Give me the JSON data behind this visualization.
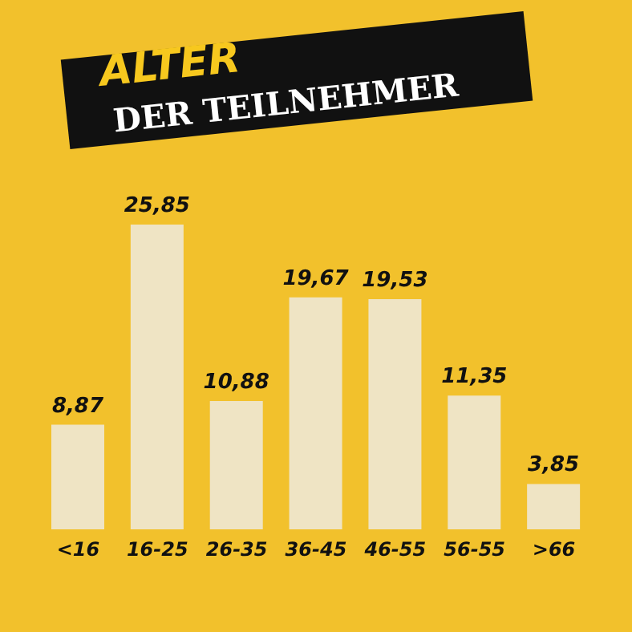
{
  "chart_data": {
    "type": "bar",
    "title": "ALTER",
    "subtitle": "DER TEILNEHMER",
    "categories": [
      "<16",
      "16-25",
      "26-35",
      "36-45",
      "46-55",
      "56-55",
      ">66"
    ],
    "values": [
      8.87,
      25.85,
      10.88,
      19.67,
      19.53,
      11.35,
      3.85
    ],
    "value_labels": [
      "8,87",
      "25,85",
      "10,88",
      "19,67",
      "19,53",
      "11,35",
      "3,85"
    ],
    "color": "#efe4c4",
    "grid": false,
    "legend": false
  }
}
